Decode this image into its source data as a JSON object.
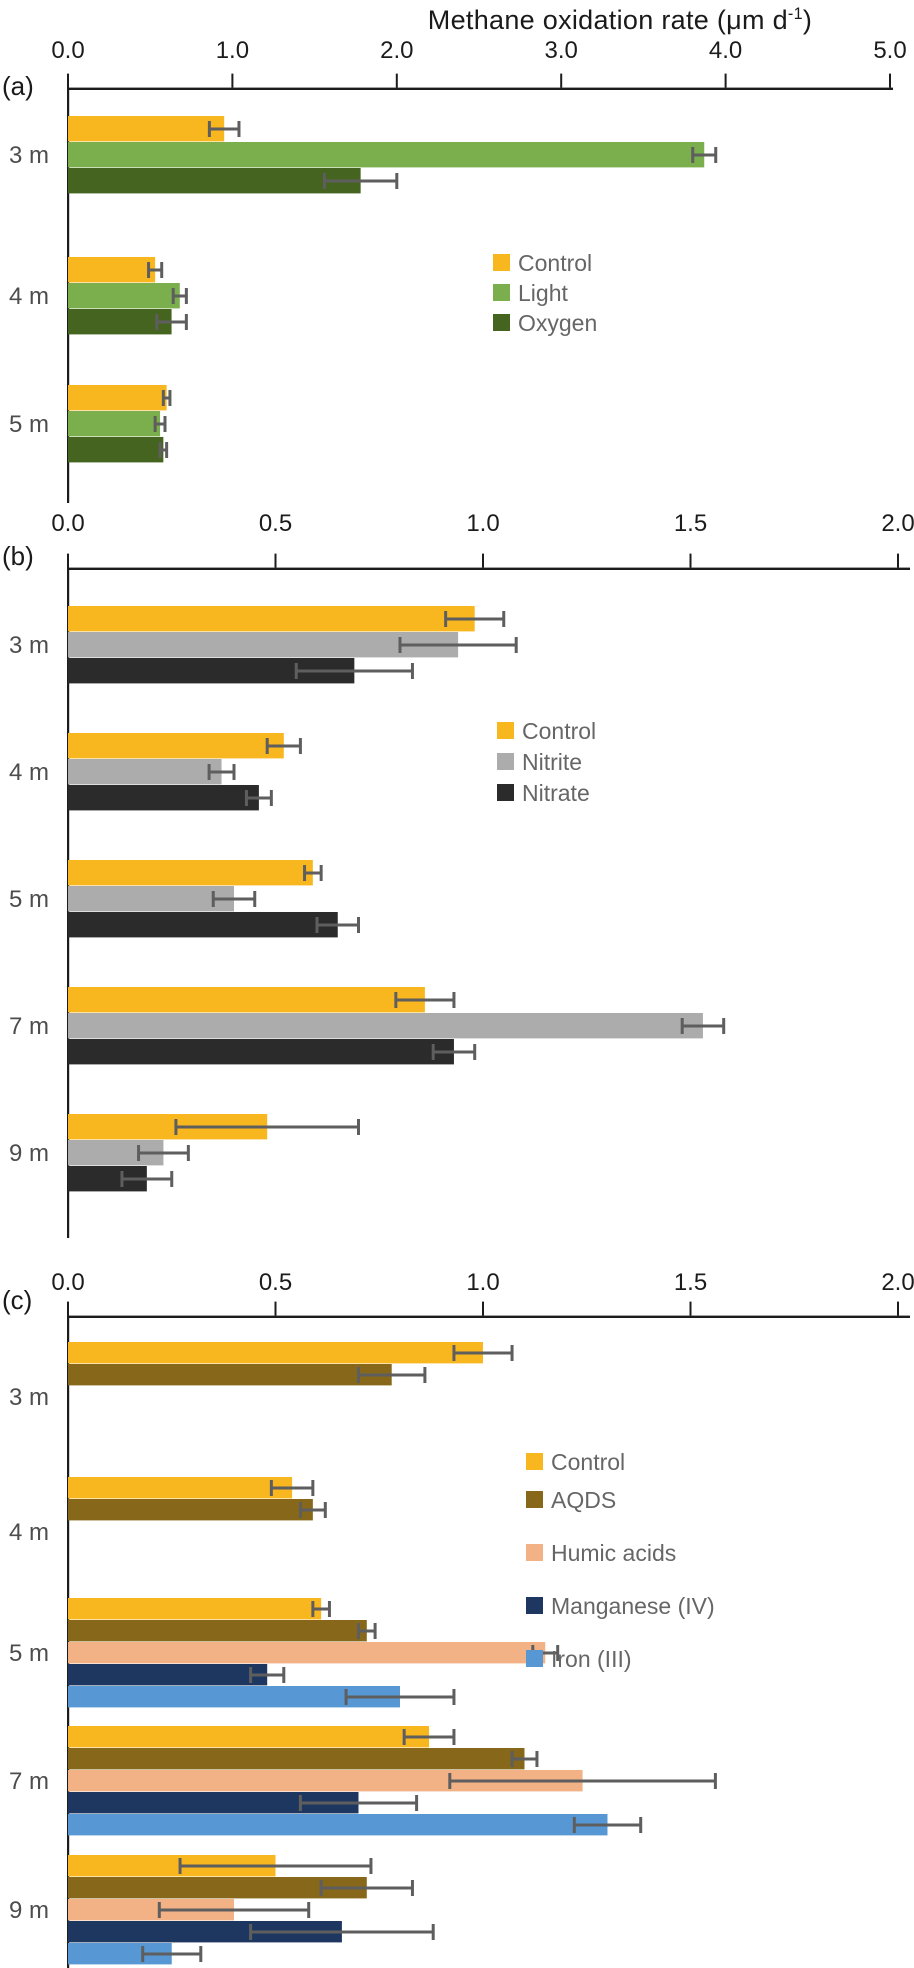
{
  "title": {
    "main": "Methane oxidation rate (μm d",
    "sup": "-1",
    "close": ")"
  },
  "colors": {
    "control_yellow": "#F8B71E",
    "light_green": "#7BAE4D",
    "oxygen_green": "#45641F",
    "nitrite_gray": "#ACACAC",
    "nitrate_black": "#2B2B2B",
    "aqds_brown": "#87681A",
    "humic_peach": "#F2B285",
    "manganese_navy": "#1E3760",
    "iron_blue": "#5798D4",
    "error_bar": "#5E5E5E",
    "axis": "#1C1C1C",
    "depth_label": "#4D4D4D",
    "legend_label": "#666666",
    "title_text": "#1A1A1A"
  },
  "chart_data": [
    {
      "id": "a",
      "panel_label": "(a)",
      "type": "bar",
      "orientation": "horizontal",
      "x_axis_title": "Methane oxidation rate (μm d⁻¹)",
      "xlim": [
        0,
        5
      ],
      "xticks": [
        0,
        1,
        2,
        3,
        4,
        5
      ],
      "xtick_labels": [
        "0.0",
        "1.0",
        "2.0",
        "3.0",
        "4.0",
        "5.0"
      ],
      "categories": [
        "3 m",
        "4 m",
        "5 m"
      ],
      "legend_position": "middle-right",
      "grid": false,
      "series": [
        {
          "name": "Control",
          "color": "#F8B71E",
          "values": [
            0.95,
            0.53,
            0.6
          ],
          "errors": [
            0.09,
            0.04,
            0.02
          ]
        },
        {
          "name": "Light",
          "color": "#7BAE4D",
          "values": [
            3.87,
            0.68,
            0.56
          ],
          "errors": [
            0.07,
            0.04,
            0.03
          ]
        },
        {
          "name": "Oxygen",
          "color": "#45641F",
          "values": [
            1.78,
            0.63,
            0.58
          ],
          "errors": [
            0.22,
            0.09,
            0.02
          ]
        }
      ]
    },
    {
      "id": "b",
      "panel_label": "(b)",
      "type": "bar",
      "orientation": "horizontal",
      "xlim": [
        0,
        2
      ],
      "xticks": [
        0,
        0.5,
        1.0,
        1.5,
        2.0
      ],
      "xtick_labels": [
        "0.0",
        "0.5",
        "1.0",
        "1.5",
        "2.0"
      ],
      "categories": [
        "3 m",
        "4 m",
        "5 m",
        "7 m",
        "9 m"
      ],
      "legend_position": "middle-right",
      "grid": false,
      "series": [
        {
          "name": "Control",
          "color": "#F8B71E",
          "values": [
            0.98,
            0.52,
            0.59,
            0.86,
            0.48
          ],
          "errors": [
            0.07,
            0.04,
            0.02,
            0.07,
            0.22
          ]
        },
        {
          "name": "Nitrite",
          "color": "#ACACAC",
          "values": [
            0.94,
            0.37,
            0.4,
            1.53,
            0.23
          ],
          "errors": [
            0.14,
            0.03,
            0.05,
            0.05,
            0.06
          ]
        },
        {
          "name": "Nitrate",
          "color": "#2B2B2B",
          "values": [
            0.69,
            0.46,
            0.65,
            0.93,
            0.19
          ],
          "errors": [
            0.14,
            0.03,
            0.05,
            0.05,
            0.06
          ]
        }
      ]
    },
    {
      "id": "c",
      "panel_label": "(c)",
      "type": "bar",
      "orientation": "horizontal",
      "xlim": [
        0,
        2
      ],
      "xticks": [
        0,
        0.5,
        1.0,
        1.5,
        2.0
      ],
      "xtick_labels": [
        "0.0",
        "0.5",
        "1.0",
        "1.5",
        "2.0"
      ],
      "categories": [
        "3 m",
        "4 m",
        "5 m",
        "7 m",
        "9 m"
      ],
      "legend_position": "middle-right",
      "grid": false,
      "series": [
        {
          "name": "Control",
          "color": "#F8B71E",
          "values": [
            1.0,
            0.54,
            0.61,
            0.87,
            0.5
          ],
          "errors": [
            0.07,
            0.05,
            0.02,
            0.06,
            0.23
          ]
        },
        {
          "name": "AQDS",
          "color": "#87681A",
          "values": [
            0.78,
            0.59,
            0.72,
            1.1,
            0.72
          ],
          "errors": [
            0.08,
            0.03,
            0.02,
            0.03,
            0.11
          ]
        },
        {
          "name": "Humic acids",
          "color": "#F2B285",
          "values": [
            null,
            null,
            1.15,
            1.24,
            0.4
          ],
          "errors": [
            null,
            null,
            0.03,
            0.32,
            0.18
          ]
        },
        {
          "name": "Manganese (IV)",
          "color": "#1E3760",
          "values": [
            null,
            null,
            0.48,
            0.7,
            0.66
          ],
          "errors": [
            null,
            null,
            0.04,
            0.14,
            0.22
          ]
        },
        {
          "name": "Iron (III)",
          "color": "#5798D4",
          "values": [
            null,
            null,
            0.8,
            1.3,
            0.25
          ],
          "errors": [
            null,
            null,
            0.13,
            0.08,
            0.07
          ]
        }
      ]
    }
  ]
}
